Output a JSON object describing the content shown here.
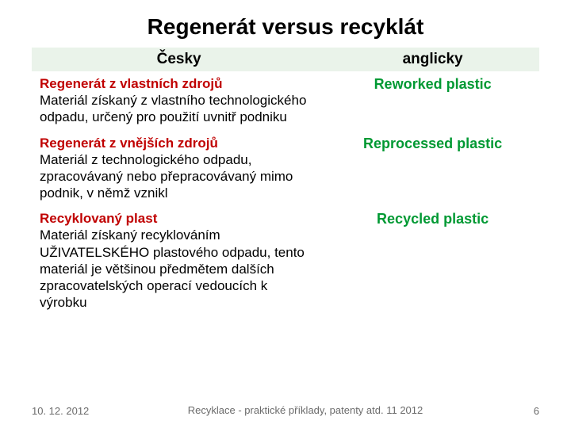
{
  "title": "Regenerát versus recyklát",
  "headers": {
    "cz": "Česky",
    "en": "anglicky"
  },
  "rows": [
    {
      "term": "Regenerát z vlastních zdrojů",
      "desc": "Materiál získaný z vlastního technologického odpadu, určený pro použití uvnitř podniku",
      "en": "Reworked plastic"
    },
    {
      "term": "Regenerát z vnějších zdrojů",
      "desc": "Materiál z technologického odpadu, zpracovávaný nebo přepracovávaný mimo podnik, v němž vznikl",
      "en": "Reprocessed plastic"
    },
    {
      "term": "Recyklovaný plast",
      "desc": "Materiál získaný recyklováním UŽIVATELSKÉHO plastového odpadu, tento materiál je většinou předmětem  dalších zpracovatelských operací vedoucích k výrobku",
      "en": "Recycled plastic"
    }
  ],
  "footer": {
    "date": "10. 12. 2012",
    "center": "Recyklace - praktické příklady, patenty atd. 11 2012",
    "page": "6"
  },
  "colors": {
    "term": "#c00000",
    "en": "#009933",
    "header_bg": "#eaf3ea",
    "footer_text": "#6b6b6b"
  }
}
